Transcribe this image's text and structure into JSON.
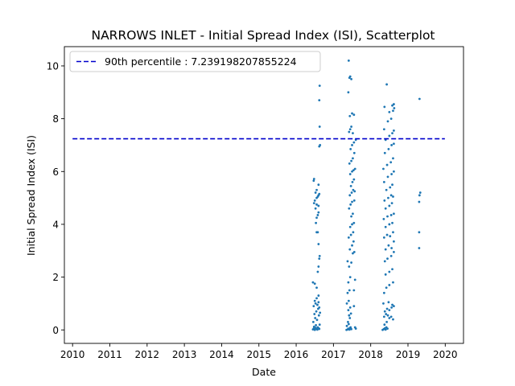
{
  "chart_data": {
    "type": "scatter",
    "title": "NARROWS INLET - Initial Spread Index (ISI), Scatterplot",
    "xlabel": "Date",
    "ylabel": "Initial Spread Index (ISI)",
    "xlim": [
      2009.78,
      2020.49
    ],
    "ylim": [
      -0.51,
      10.73
    ],
    "x_ticks": [
      2010,
      2011,
      2012,
      2013,
      2014,
      2015,
      2016,
      2017,
      2018,
      2019,
      2020
    ],
    "x_tick_labels": [
      "2010",
      "2011",
      "2012",
      "2013",
      "2014",
      "2015",
      "2016",
      "2017",
      "2018",
      "2019",
      "2020"
    ],
    "y_ticks": [
      0,
      2,
      4,
      6,
      8,
      10
    ],
    "y_tick_labels": [
      "0",
      "2",
      "4",
      "6",
      "8",
      "10"
    ],
    "grid": false,
    "legend_position": "top-left",
    "reference_line": {
      "label": "90th percentile : 7.239198207855224",
      "value": 7.239198207855224,
      "x_range": [
        2010.0,
        2019.99
      ],
      "color": "#0000cc",
      "style": "dashed"
    },
    "series": [
      {
        "color": "#1f77b4",
        "points": [
          [
            2016.45,
            0.02
          ],
          [
            2016.47,
            0.05
          ],
          [
            2016.5,
            0.0
          ],
          [
            2016.52,
            0.08
          ],
          [
            2016.55,
            0.03
          ],
          [
            2016.57,
            0.01
          ],
          [
            2016.6,
            0.06
          ],
          [
            2016.62,
            0.04
          ],
          [
            2016.48,
            0.12
          ],
          [
            2016.53,
            0.18
          ],
          [
            2016.58,
            0.1
          ],
          [
            2016.63,
            0.2
          ],
          [
            2016.46,
            0.3
          ],
          [
            2016.51,
            0.45
          ],
          [
            2016.56,
            0.38
          ],
          [
            2016.61,
            0.55
          ],
          [
            2016.49,
            0.6
          ],
          [
            2016.54,
            0.7
          ],
          [
            2016.59,
            0.8
          ],
          [
            2016.64,
            0.65
          ],
          [
            2016.47,
            0.9
          ],
          [
            2016.52,
            1.0
          ],
          [
            2016.57,
            0.95
          ],
          [
            2016.62,
            0.85
          ],
          [
            2016.5,
            1.1
          ],
          [
            2016.55,
            1.2
          ],
          [
            2016.6,
            1.05
          ],
          [
            2016.45,
            1.8
          ],
          [
            2016.5,
            1.75
          ],
          [
            2016.55,
            1.6
          ],
          [
            2016.6,
            1.3
          ],
          [
            2016.58,
            2.2
          ],
          [
            2016.6,
            2.4
          ],
          [
            2016.62,
            2.7
          ],
          [
            2016.63,
            2.8
          ],
          [
            2016.6,
            3.25
          ],
          [
            2016.55,
            3.7
          ],
          [
            2016.58,
            3.7
          ],
          [
            2016.53,
            4.05
          ],
          [
            2016.55,
            4.25
          ],
          [
            2016.58,
            4.35
          ],
          [
            2016.6,
            4.45
          ],
          [
            2016.52,
            4.6
          ],
          [
            2016.55,
            4.75
          ],
          [
            2016.6,
            4.7
          ],
          [
            2016.48,
            4.8
          ],
          [
            2016.5,
            4.9
          ],
          [
            2016.55,
            5.0
          ],
          [
            2016.58,
            5.05
          ],
          [
            2016.6,
            5.1
          ],
          [
            2016.62,
            5.15
          ],
          [
            2016.52,
            5.2
          ],
          [
            2016.55,
            5.3
          ],
          [
            2016.6,
            5.5
          ],
          [
            2016.47,
            5.65
          ],
          [
            2016.48,
            5.72
          ],
          [
            2016.62,
            6.95
          ],
          [
            2016.64,
            7.0
          ],
          [
            2016.63,
            7.7
          ],
          [
            2016.62,
            8.7
          ],
          [
            2016.63,
            9.25
          ],
          [
            2017.35,
            0.0
          ],
          [
            2017.38,
            0.02
          ],
          [
            2017.4,
            0.05
          ],
          [
            2017.43,
            0.01
          ],
          [
            2017.45,
            0.08
          ],
          [
            2017.48,
            0.03
          ],
          [
            2017.36,
            0.15
          ],
          [
            2017.41,
            0.22
          ],
          [
            2017.46,
            0.1
          ],
          [
            2017.39,
            0.3
          ],
          [
            2017.44,
            0.45
          ],
          [
            2017.42,
            0.55
          ],
          [
            2017.47,
            0.62
          ],
          [
            2017.4,
            0.75
          ],
          [
            2017.45,
            0.85
          ],
          [
            2017.55,
            0.9
          ],
          [
            2017.58,
            0.1
          ],
          [
            2017.6,
            0.05
          ],
          [
            2017.36,
            1.0
          ],
          [
            2017.41,
            1.1
          ],
          [
            2017.38,
            1.4
          ],
          [
            2017.43,
            1.5
          ],
          [
            2017.55,
            1.5
          ],
          [
            2017.4,
            1.8
          ],
          [
            2017.45,
            2.0
          ],
          [
            2017.58,
            1.9
          ],
          [
            2017.38,
            2.6
          ],
          [
            2017.42,
            2.4
          ],
          [
            2017.48,
            2.55
          ],
          [
            2017.52,
            2.9
          ],
          [
            2017.56,
            2.95
          ],
          [
            2017.44,
            3.05
          ],
          [
            2017.5,
            3.2
          ],
          [
            2017.54,
            3.35
          ],
          [
            2017.41,
            3.5
          ],
          [
            2017.47,
            3.6
          ],
          [
            2017.53,
            3.7
          ],
          [
            2017.45,
            3.9
          ],
          [
            2017.5,
            4.0
          ],
          [
            2017.55,
            4.05
          ],
          [
            2017.48,
            4.3
          ],
          [
            2017.52,
            4.4
          ],
          [
            2017.42,
            4.6
          ],
          [
            2017.46,
            4.75
          ],
          [
            2017.5,
            4.85
          ],
          [
            2017.56,
            4.9
          ],
          [
            2017.44,
            5.1
          ],
          [
            2017.49,
            5.2
          ],
          [
            2017.53,
            5.3
          ],
          [
            2017.57,
            5.25
          ],
          [
            2017.47,
            5.45
          ],
          [
            2017.51,
            5.6
          ],
          [
            2017.55,
            5.7
          ],
          [
            2017.45,
            5.9
          ],
          [
            2017.5,
            6.0
          ],
          [
            2017.54,
            6.05
          ],
          [
            2017.58,
            6.1
          ],
          [
            2017.43,
            6.3
          ],
          [
            2017.48,
            6.4
          ],
          [
            2017.52,
            6.5
          ],
          [
            2017.56,
            6.7
          ],
          [
            2017.46,
            6.85
          ],
          [
            2017.5,
            7.0
          ],
          [
            2017.55,
            7.1
          ],
          [
            2017.6,
            7.2
          ],
          [
            2017.42,
            7.5
          ],
          [
            2017.45,
            7.6
          ],
          [
            2017.48,
            7.7
          ],
          [
            2017.52,
            7.45
          ],
          [
            2017.44,
            8.1
          ],
          [
            2017.5,
            8.2
          ],
          [
            2017.55,
            8.15
          ],
          [
            2017.4,
            9.0
          ],
          [
            2017.43,
            9.55
          ],
          [
            2017.45,
            9.6
          ],
          [
            2017.48,
            9.5
          ],
          [
            2017.41,
            10.2
          ],
          [
            2018.32,
            0.0
          ],
          [
            2018.35,
            0.03
          ],
          [
            2018.38,
            0.06
          ],
          [
            2018.4,
            0.01
          ],
          [
            2018.42,
            0.1
          ],
          [
            2018.45,
            0.05
          ],
          [
            2018.37,
            0.2
          ],
          [
            2018.43,
            0.3
          ],
          [
            2018.36,
            0.5
          ],
          [
            2018.41,
            0.6
          ],
          [
            2018.46,
            0.55
          ],
          [
            2018.5,
            0.45
          ],
          [
            2018.55,
            0.5
          ],
          [
            2018.6,
            0.4
          ],
          [
            2018.38,
            0.7
          ],
          [
            2018.44,
            0.8
          ],
          [
            2018.5,
            0.75
          ],
          [
            2018.56,
            0.85
          ],
          [
            2018.62,
            0.9
          ],
          [
            2018.34,
            1.0
          ],
          [
            2018.48,
            1.05
          ],
          [
            2018.58,
            0.95
          ],
          [
            2018.36,
            1.4
          ],
          [
            2018.42,
            1.6
          ],
          [
            2018.5,
            1.7
          ],
          [
            2018.6,
            1.8
          ],
          [
            2018.4,
            2.1
          ],
          [
            2018.5,
            2.2
          ],
          [
            2018.58,
            2.3
          ],
          [
            2018.38,
            2.6
          ],
          [
            2018.45,
            2.7
          ],
          [
            2018.55,
            2.8
          ],
          [
            2018.62,
            2.95
          ],
          [
            2018.4,
            3.05
          ],
          [
            2018.48,
            3.2
          ],
          [
            2018.56,
            3.1
          ],
          [
            2018.62,
            3.35
          ],
          [
            2018.36,
            3.5
          ],
          [
            2018.44,
            3.6
          ],
          [
            2018.52,
            3.55
          ],
          [
            2018.6,
            3.7
          ],
          [
            2018.4,
            3.9
          ],
          [
            2018.5,
            4.0
          ],
          [
            2018.58,
            4.05
          ],
          [
            2018.35,
            4.2
          ],
          [
            2018.45,
            4.3
          ],
          [
            2018.55,
            4.35
          ],
          [
            2018.62,
            4.4
          ],
          [
            2018.4,
            4.6
          ],
          [
            2018.5,
            4.7
          ],
          [
            2018.57,
            4.8
          ],
          [
            2018.37,
            4.9
          ],
          [
            2018.47,
            5.0
          ],
          [
            2018.55,
            5.1
          ],
          [
            2018.6,
            5.05
          ],
          [
            2018.42,
            5.3
          ],
          [
            2018.52,
            5.4
          ],
          [
            2018.58,
            5.5
          ],
          [
            2018.36,
            5.6
          ],
          [
            2018.46,
            5.8
          ],
          [
            2018.56,
            5.9
          ],
          [
            2018.62,
            6.0
          ],
          [
            2018.34,
            6.1
          ],
          [
            2018.44,
            6.25
          ],
          [
            2018.54,
            6.35
          ],
          [
            2018.6,
            6.5
          ],
          [
            2018.38,
            6.7
          ],
          [
            2018.48,
            6.85
          ],
          [
            2018.56,
            7.0
          ],
          [
            2018.62,
            7.05
          ],
          [
            2018.4,
            7.2
          ],
          [
            2018.5,
            7.35
          ],
          [
            2018.58,
            7.45
          ],
          [
            2018.62,
            7.55
          ],
          [
            2018.36,
            7.6
          ],
          [
            2018.46,
            7.9
          ],
          [
            2018.55,
            8.0
          ],
          [
            2018.6,
            8.3
          ],
          [
            2018.63,
            8.4
          ],
          [
            2018.37,
            8.45
          ],
          [
            2018.5,
            8.25
          ],
          [
            2018.58,
            8.5
          ],
          [
            2018.62,
            8.55
          ],
          [
            2018.43,
            9.3
          ],
          [
            2019.3,
            3.1
          ],
          [
            2019.3,
            3.7
          ],
          [
            2019.3,
            4.85
          ],
          [
            2019.31,
            5.1
          ],
          [
            2019.33,
            5.2
          ],
          [
            2019.31,
            8.75
          ]
        ]
      }
    ]
  }
}
